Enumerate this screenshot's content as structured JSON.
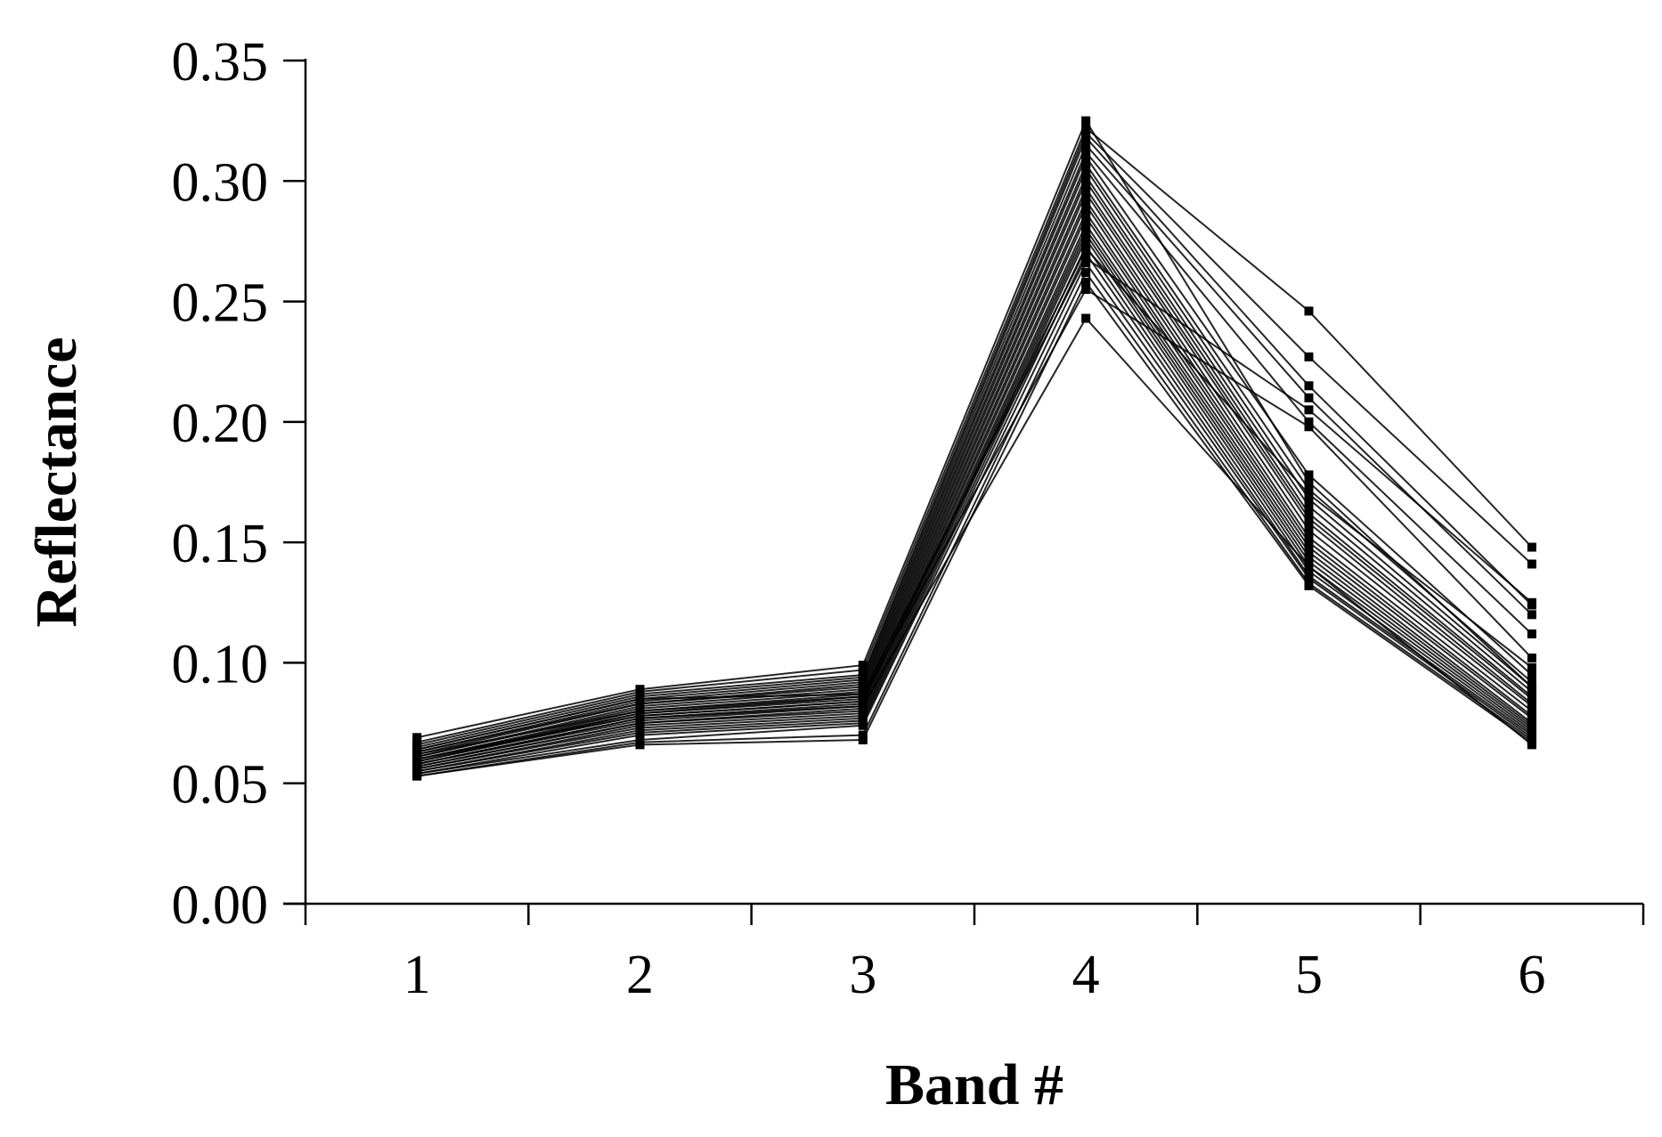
{
  "chart_data": {
    "type": "line",
    "title": "",
    "xlabel": "Band #",
    "ylabel": "Reflectance",
    "categories": [
      "1",
      "2",
      "3",
      "4",
      "5",
      "6"
    ],
    "ylim": [
      0.0,
      0.35
    ],
    "yticks": [
      "0.00",
      "0.05",
      "0.10",
      "0.15",
      "0.20",
      "0.25",
      "0.30",
      "0.35"
    ],
    "grid": false,
    "legend": "none",
    "line_color": "#000000",
    "marker": "square",
    "series": [
      {
        "values": [
          0.069,
          0.089,
          0.099,
          0.325,
          0.175,
          0.09
        ]
      },
      {
        "values": [
          0.067,
          0.088,
          0.097,
          0.322,
          0.246,
          0.148
        ]
      },
      {
        "values": [
          0.066,
          0.087,
          0.095,
          0.32,
          0.227,
          0.141
        ]
      },
      {
        "values": [
          0.065,
          0.086,
          0.094,
          0.318,
          0.215,
          0.124
        ]
      },
      {
        "values": [
          0.064,
          0.085,
          0.093,
          0.315,
          0.21,
          0.12
        ]
      },
      {
        "values": [
          0.063,
          0.084,
          0.092,
          0.312,
          0.2,
          0.112
        ]
      },
      {
        "values": [
          0.063,
          0.083,
          0.091,
          0.31,
          0.178,
          0.095
        ]
      },
      {
        "values": [
          0.062,
          0.083,
          0.09,
          0.307,
          0.172,
          0.092
        ]
      },
      {
        "values": [
          0.061,
          0.082,
          0.089,
          0.305,
          0.168,
          0.09
        ]
      },
      {
        "values": [
          0.061,
          0.081,
          0.088,
          0.302,
          0.165,
          0.088
        ]
      },
      {
        "values": [
          0.06,
          0.08,
          0.087,
          0.3,
          0.162,
          0.086
        ]
      },
      {
        "values": [
          0.06,
          0.079,
          0.086,
          0.297,
          0.16,
          0.085
        ]
      },
      {
        "values": [
          0.059,
          0.079,
          0.085,
          0.295,
          0.158,
          0.083
        ]
      },
      {
        "values": [
          0.059,
          0.078,
          0.084,
          0.292,
          0.155,
          0.082
        ]
      },
      {
        "values": [
          0.058,
          0.077,
          0.083,
          0.29,
          0.152,
          0.08
        ]
      },
      {
        "values": [
          0.058,
          0.076,
          0.082,
          0.287,
          0.15,
          0.078
        ]
      },
      {
        "values": [
          0.057,
          0.075,
          0.081,
          0.285,
          0.148,
          0.077
        ]
      },
      {
        "values": [
          0.057,
          0.075,
          0.08,
          0.282,
          0.146,
          0.075
        ]
      },
      {
        "values": [
          0.056,
          0.074,
          0.079,
          0.28,
          0.144,
          0.074
        ]
      },
      {
        "values": [
          0.056,
          0.073,
          0.078,
          0.278,
          0.142,
          0.073
        ]
      },
      {
        "values": [
          0.055,
          0.072,
          0.077,
          0.276,
          0.14,
          0.072
        ]
      },
      {
        "values": [
          0.055,
          0.071,
          0.076,
          0.273,
          0.138,
          0.071
        ]
      },
      {
        "values": [
          0.054,
          0.07,
          0.075,
          0.27,
          0.136,
          0.07
        ]
      },
      {
        "values": [
          0.054,
          0.068,
          0.074,
          0.266,
          0.135,
          0.069
        ]
      },
      {
        "values": [
          0.053,
          0.067,
          0.07,
          0.262,
          0.133,
          0.068
        ]
      },
      {
        "values": [
          0.053,
          0.066,
          0.068,
          0.258,
          0.132,
          0.067
        ]
      },
      {
        "values": [
          0.062,
          0.08,
          0.086,
          0.255,
          0.198,
          0.102
        ]
      },
      {
        "values": [
          0.058,
          0.077,
          0.082,
          0.243,
          0.14,
          0.066
        ]
      },
      {
        "values": [
          0.064,
          0.085,
          0.087,
          0.268,
          0.205,
          0.125
        ]
      },
      {
        "values": [
          0.06,
          0.078,
          0.084,
          0.272,
          0.17,
          0.098
        ]
      }
    ]
  }
}
